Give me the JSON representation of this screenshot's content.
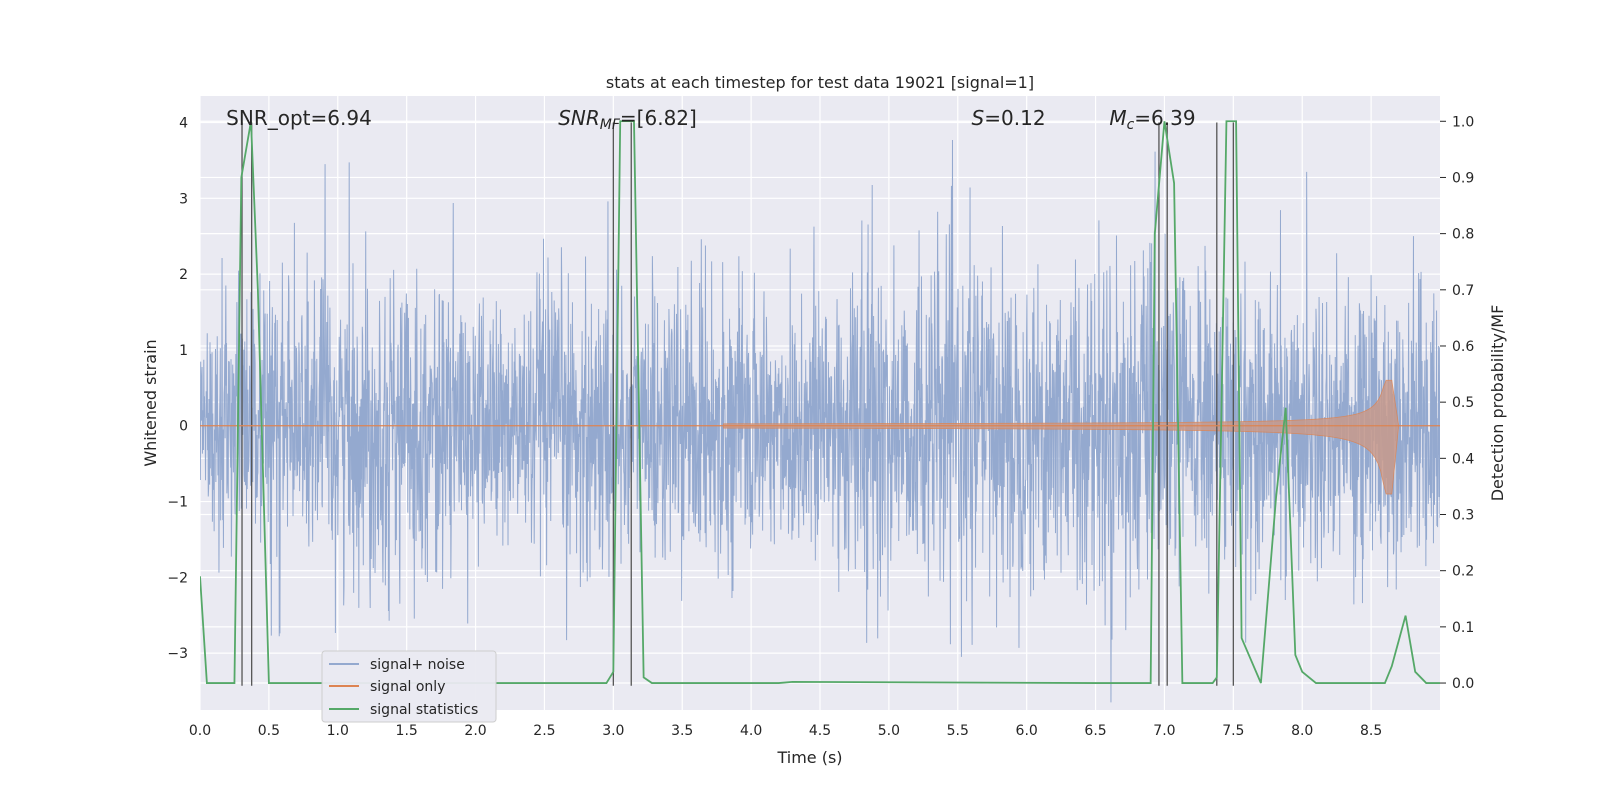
{
  "chart_data": {
    "type": "line",
    "title": "stats at each timestep for test data 19021 [signal=1]",
    "xlabel": "Time (s)",
    "ylabel_left": "Whitened strain",
    "ylabel_right": "Detection probability/MF",
    "xlim": [
      0.0,
      9.0
    ],
    "ylim_left": [
      -3.75,
      4.35
    ],
    "ylim_right": [
      -0.048,
      1.045
    ],
    "x_ticks": [
      0.0,
      0.5,
      1.0,
      1.5,
      2.0,
      2.5,
      3.0,
      3.5,
      4.0,
      4.5,
      5.0,
      5.5,
      6.0,
      6.5,
      7.0,
      7.5,
      8.0,
      8.5
    ],
    "x_tick_labels": [
      "0.0",
      "0.5",
      "1.0",
      "1.5",
      "2.0",
      "2.5",
      "3.0",
      "3.5",
      "4.0",
      "4.5",
      "5.0",
      "5.5",
      "6.0",
      "6.5",
      "7.0",
      "7.5",
      "8.0",
      "8.5"
    ],
    "y_left_ticks": [
      -3,
      -2,
      -1,
      0,
      1,
      2,
      3,
      4
    ],
    "y_left_tick_labels": [
      "−3",
      "−2",
      "−1",
      "0",
      "1",
      "2",
      "3",
      "4"
    ],
    "y_right_ticks": [
      0.0,
      0.1,
      0.2,
      0.3,
      0.4,
      0.5,
      0.6,
      0.7,
      0.8,
      0.9,
      1.0
    ],
    "y_right_tick_labels": [
      "0.0",
      "0.1",
      "0.2",
      "0.3",
      "0.4",
      "0.5",
      "0.6",
      "0.7",
      "0.8",
      "0.9",
      "1.0"
    ],
    "grid": true,
    "legend_position": "lower-left",
    "legend": [
      {
        "label": "signal+ noise",
        "color": "#94a9cf"
      },
      {
        "label": "signal only",
        "color": "#dd8452"
      },
      {
        "label": "signal statistics",
        "color": "#55a868"
      }
    ],
    "annotations": [
      {
        "text": "SNR_opt=6.94",
        "x": 0.19
      },
      {
        "text": "SNR_MF=[6.82]",
        "x": 2.6
      },
      {
        "text": "S=0.12",
        "x": 5.6
      },
      {
        "text": "M_c=6.39",
        "x": 6.6
      }
    ],
    "series": [
      {
        "name": "signal+ noise",
        "kind": "noise",
        "axis": "left",
        "duration": 9.0,
        "envelope": [
          [
            0.0,
            2.2
          ],
          [
            0.5,
            2.6
          ],
          [
            0.9,
            3.4
          ],
          [
            1.4,
            3.2
          ],
          [
            2.0,
            2.6
          ],
          [
            2.8,
            3.1
          ],
          [
            3.4,
            2.8
          ],
          [
            4.2,
            2.7
          ],
          [
            4.6,
            3.7
          ],
          [
            5.0,
            3.3
          ],
          [
            5.5,
            3.5
          ],
          [
            6.0,
            3.3
          ],
          [
            6.55,
            3.5
          ],
          [
            7.0,
            3.5
          ],
          [
            7.5,
            3.0
          ],
          [
            8.0,
            2.8
          ],
          [
            8.5,
            3.3
          ],
          [
            9.0,
            2.6
          ]
        ],
        "min_value": -3.65,
        "max_value": 3.77
      },
      {
        "name": "signal only",
        "kind": "chirp",
        "axis": "left",
        "start_time": 3.8,
        "merger_time": 8.65,
        "peak_positive": 0.6,
        "peak_negative": -0.9,
        "end_time": 8.7
      },
      {
        "name": "signal statistics",
        "kind": "line",
        "axis": "right",
        "x": [
          0.0,
          0.05,
          0.25,
          0.3,
          0.37,
          0.42,
          0.5,
          2.95,
          3.0,
          3.05,
          3.15,
          3.22,
          3.28,
          4.2,
          4.3,
          6.5,
          6.9,
          6.93,
          7.0,
          7.07,
          7.13,
          7.35,
          7.38,
          7.45,
          7.52,
          7.56,
          7.7,
          7.81,
          7.88,
          7.95,
          8.0,
          8.1,
          8.2,
          8.6,
          8.65,
          8.75,
          8.82,
          8.9,
          9.0
        ],
        "y": [
          0.19,
          0.0,
          0.0,
          0.9,
          1.0,
          0.7,
          0.0,
          0.0,
          0.02,
          1.0,
          1.0,
          0.01,
          0.0,
          0.0,
          0.002,
          0.0,
          0.0,
          0.8,
          1.0,
          0.89,
          0.0,
          0.0,
          0.01,
          1.0,
          1.0,
          0.08,
          0.0,
          0.33,
          0.49,
          0.05,
          0.02,
          0.0,
          0.0,
          0.0,
          0.03,
          0.12,
          0.02,
          0.0,
          0.0
        ]
      },
      {
        "name": "vertical markers",
        "kind": "vlines",
        "axis": "left",
        "x": [
          0.305,
          0.375,
          3.0,
          3.13,
          6.96,
          7.02,
          7.38,
          7.5
        ],
        "y_top": 4.0,
        "y_bottom": -3.43
      }
    ]
  }
}
